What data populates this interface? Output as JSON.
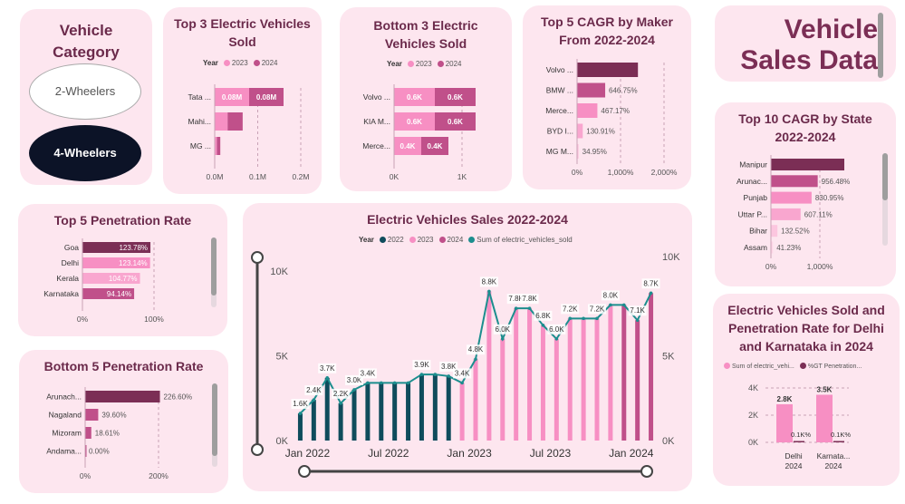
{
  "vehicle_category": {
    "title": "Vehicle Category",
    "options": [
      "2-Wheelers",
      "4-Wheelers"
    ],
    "selected": "4-Wheelers"
  },
  "header": {
    "title_line1": "Vehicle",
    "title_line2": "Sales Data"
  },
  "colors": {
    "y2022": "#0f4c5c",
    "y2023": "#f78fc3",
    "y2024": "#c0508a",
    "line": "#1c8e8e",
    "dark": "#7b2e55",
    "card": "#fde6ef"
  },
  "chart_data": [
    {
      "id": "top3_ev",
      "type": "bar",
      "title": "Top 3 Electric Vehicles Sold",
      "legend_title": "Year",
      "categories": [
        "Tata ...",
        "Mahi...",
        "MG ..."
      ],
      "series": [
        {
          "name": "2023",
          "values": [
            0.08,
            0.03,
            0.005
          ]
        },
        {
          "name": "2024",
          "values": [
            0.08,
            0.035,
            0.008
          ]
        }
      ],
      "data_labels": [
        [
          "0.08M",
          "0.08M"
        ],
        [
          "",
          ""
        ],
        [
          "",
          ""
        ]
      ],
      "xticks": [
        "0.0M",
        "0.1M",
        "0.2M"
      ],
      "xlim": [
        0,
        0.2
      ]
    },
    {
      "id": "bottom3_ev",
      "type": "bar",
      "title": "Bottom 3 Electric Vehicles Sold",
      "legend_title": "Year",
      "categories": [
        "Volvo ...",
        "KIA M...",
        "Merce..."
      ],
      "series": [
        {
          "name": "2023",
          "values": [
            0.6,
            0.6,
            0.4
          ]
        },
        {
          "name": "2024",
          "values": [
            0.6,
            0.6,
            0.4
          ]
        }
      ],
      "data_labels": [
        [
          "0.6K",
          "0.6K"
        ],
        [
          "0.6K",
          "0.6K"
        ],
        [
          "0.4K",
          "0.4K"
        ]
      ],
      "xticks": [
        "0K",
        "1K"
      ],
      "xlim": [
        0,
        1
      ]
    },
    {
      "id": "cagr_maker",
      "type": "bar",
      "title": "Top 5 CAGR by Maker From 2022-2024",
      "categories": [
        "Volvo ...",
        "BMW ...",
        "Merce...",
        "BYD I...",
        "MG M..."
      ],
      "values": [
        1400,
        646.75,
        467.17,
        130.91,
        34.95
      ],
      "data_labels": [
        "",
        "646.75%",
        "467.17%",
        "130.91%",
        "34.95%"
      ],
      "xticks": [
        "0%",
        "1,000%",
        "2,000%"
      ],
      "xlim": [
        0,
        2000
      ]
    },
    {
      "id": "cagr_state",
      "type": "bar",
      "title": "Top 10 CAGR by State 2022-2024",
      "categories": [
        "Manipur",
        "Arunac...",
        "Punjab",
        "Uttar P...",
        "Bihar",
        "Assam"
      ],
      "values": [
        1500,
        956.48,
        830.95,
        607.11,
        132.52,
        41.23
      ],
      "data_labels": [
        "",
        "956.48%",
        "830.95%",
        "607.11%",
        "132.52%",
        "41.23%"
      ],
      "xticks": [
        "0%",
        "1,000%"
      ],
      "xlim": [
        0,
        2000
      ]
    },
    {
      "id": "top5_pen",
      "type": "bar",
      "title": "Top 5 Penetration Rate",
      "categories": [
        "Goa",
        "Delhi",
        "Kerala",
        "Karnataka"
      ],
      "values": [
        123.78,
        123.14,
        104.77,
        94.14
      ],
      "data_labels": [
        "123.78%",
        "123.14%",
        "104.77%",
        "94.14%"
      ],
      "xticks": [
        "0%",
        "100%"
      ],
      "xlim": [
        0,
        160
      ]
    },
    {
      "id": "bottom5_pen",
      "type": "bar",
      "title": "Bottom 5 Penetration Rate",
      "categories": [
        "Arunach...",
        "Nagaland",
        "Mizoram",
        "Andama..."
      ],
      "values": [
        226.6,
        39.6,
        18.61,
        0.0
      ],
      "data_labels": [
        "226.60%",
        "39.60%",
        "18.61%",
        "0.00%"
      ],
      "xticks": [
        "0%",
        "200%"
      ],
      "xlim": [
        0,
        280
      ]
    },
    {
      "id": "ev_sales",
      "type": "bar",
      "title": "Electric Vehicles Sales 2022-2024",
      "legend_title": "Year",
      "legend": [
        "2022",
        "2023",
        "2024",
        "Sum of electric_vehicles_sold"
      ],
      "x": [
        "Jan 2022",
        "Feb 2022",
        "Mar 2022",
        "Apr 2022",
        "May 2022",
        "Jun 2022",
        "Jul 2022",
        "Aug 2022",
        "Sep 2022",
        "Oct 2022",
        "Nov 2022",
        "Dec 2022",
        "Jan 2023",
        "Feb 2023",
        "Mar 2023",
        "Apr 2023",
        "May 2023",
        "Jun 2023",
        "Jul 2023",
        "Aug 2023",
        "Sep 2023",
        "Oct 2023",
        "Nov 2023",
        "Dec 2023",
        "Jan 2024",
        "Feb 2024",
        "Mar 2024"
      ],
      "year": [
        "2022",
        "2022",
        "2022",
        "2022",
        "2022",
        "2022",
        "2022",
        "2022",
        "2022",
        "2022",
        "2022",
        "2022",
        "2023",
        "2023",
        "2023",
        "2023",
        "2023",
        "2023",
        "2023",
        "2023",
        "2023",
        "2023",
        "2023",
        "2023",
        "2024",
        "2024",
        "2024"
      ],
      "values": [
        1.6,
        2.4,
        3.7,
        2.2,
        3.0,
        3.4,
        3.4,
        3.4,
        3.4,
        3.9,
        3.9,
        3.8,
        3.4,
        4.8,
        8.8,
        6.0,
        7.8,
        7.8,
        6.8,
        6.0,
        7.2,
        7.2,
        7.2,
        8.0,
        8.0,
        7.1,
        8.7
      ],
      "line_values": [
        1.6,
        2.4,
        3.7,
        2.2,
        3.0,
        3.4,
        3.4,
        3.4,
        3.4,
        3.9,
        3.9,
        3.8,
        3.4,
        4.8,
        8.8,
        6.0,
        7.8,
        7.8,
        6.8,
        6.0,
        7.2,
        7.2,
        7.2,
        8.0,
        8.0,
        7.1,
        8.7
      ],
      "bar_labels": [
        "1.6K",
        "2.4K",
        "3.7K",
        "2.2K",
        "3.0K",
        "3.4K",
        "",
        "",
        "",
        "3.9K",
        "",
        "3.8K",
        "3.4K",
        "4.8K",
        "8.8K",
        "6.0K",
        "7.8K",
        "7.8K",
        "6.8K",
        "6.0K",
        "7.2K",
        "",
        "7.2K",
        "8.0K",
        "",
        "7.1K",
        "8.7K"
      ],
      "yticks_left": [
        "0K",
        "5K",
        "10K"
      ],
      "yticks_right": [
        "0K",
        "5K",
        "10K"
      ],
      "ylim": [
        0,
        10
      ],
      "xticks": [
        "Jan 2022",
        "Jul 2022",
        "Jan 2023",
        "Jul 2023",
        "Jan 2024"
      ]
    },
    {
      "id": "delhi_karnataka",
      "type": "bar",
      "title": "Electric Vehicles Sold and Penetration Rate for Delhi and Karnataka in 2024",
      "legend": [
        "Sum of electric_vehi...",
        "%GT Penetration..."
      ],
      "categories": [
        "Delhi 2024",
        "Karnata... 2024"
      ],
      "values": [
        2.8,
        3.5
      ],
      "data_labels": [
        "2.8K",
        "3.5K"
      ],
      "pen_labels": [
        "0.1K%",
        "0.1K%"
      ],
      "yticks": [
        "0K",
        "2K",
        "4K"
      ],
      "ylim": [
        0,
        4
      ]
    }
  ]
}
